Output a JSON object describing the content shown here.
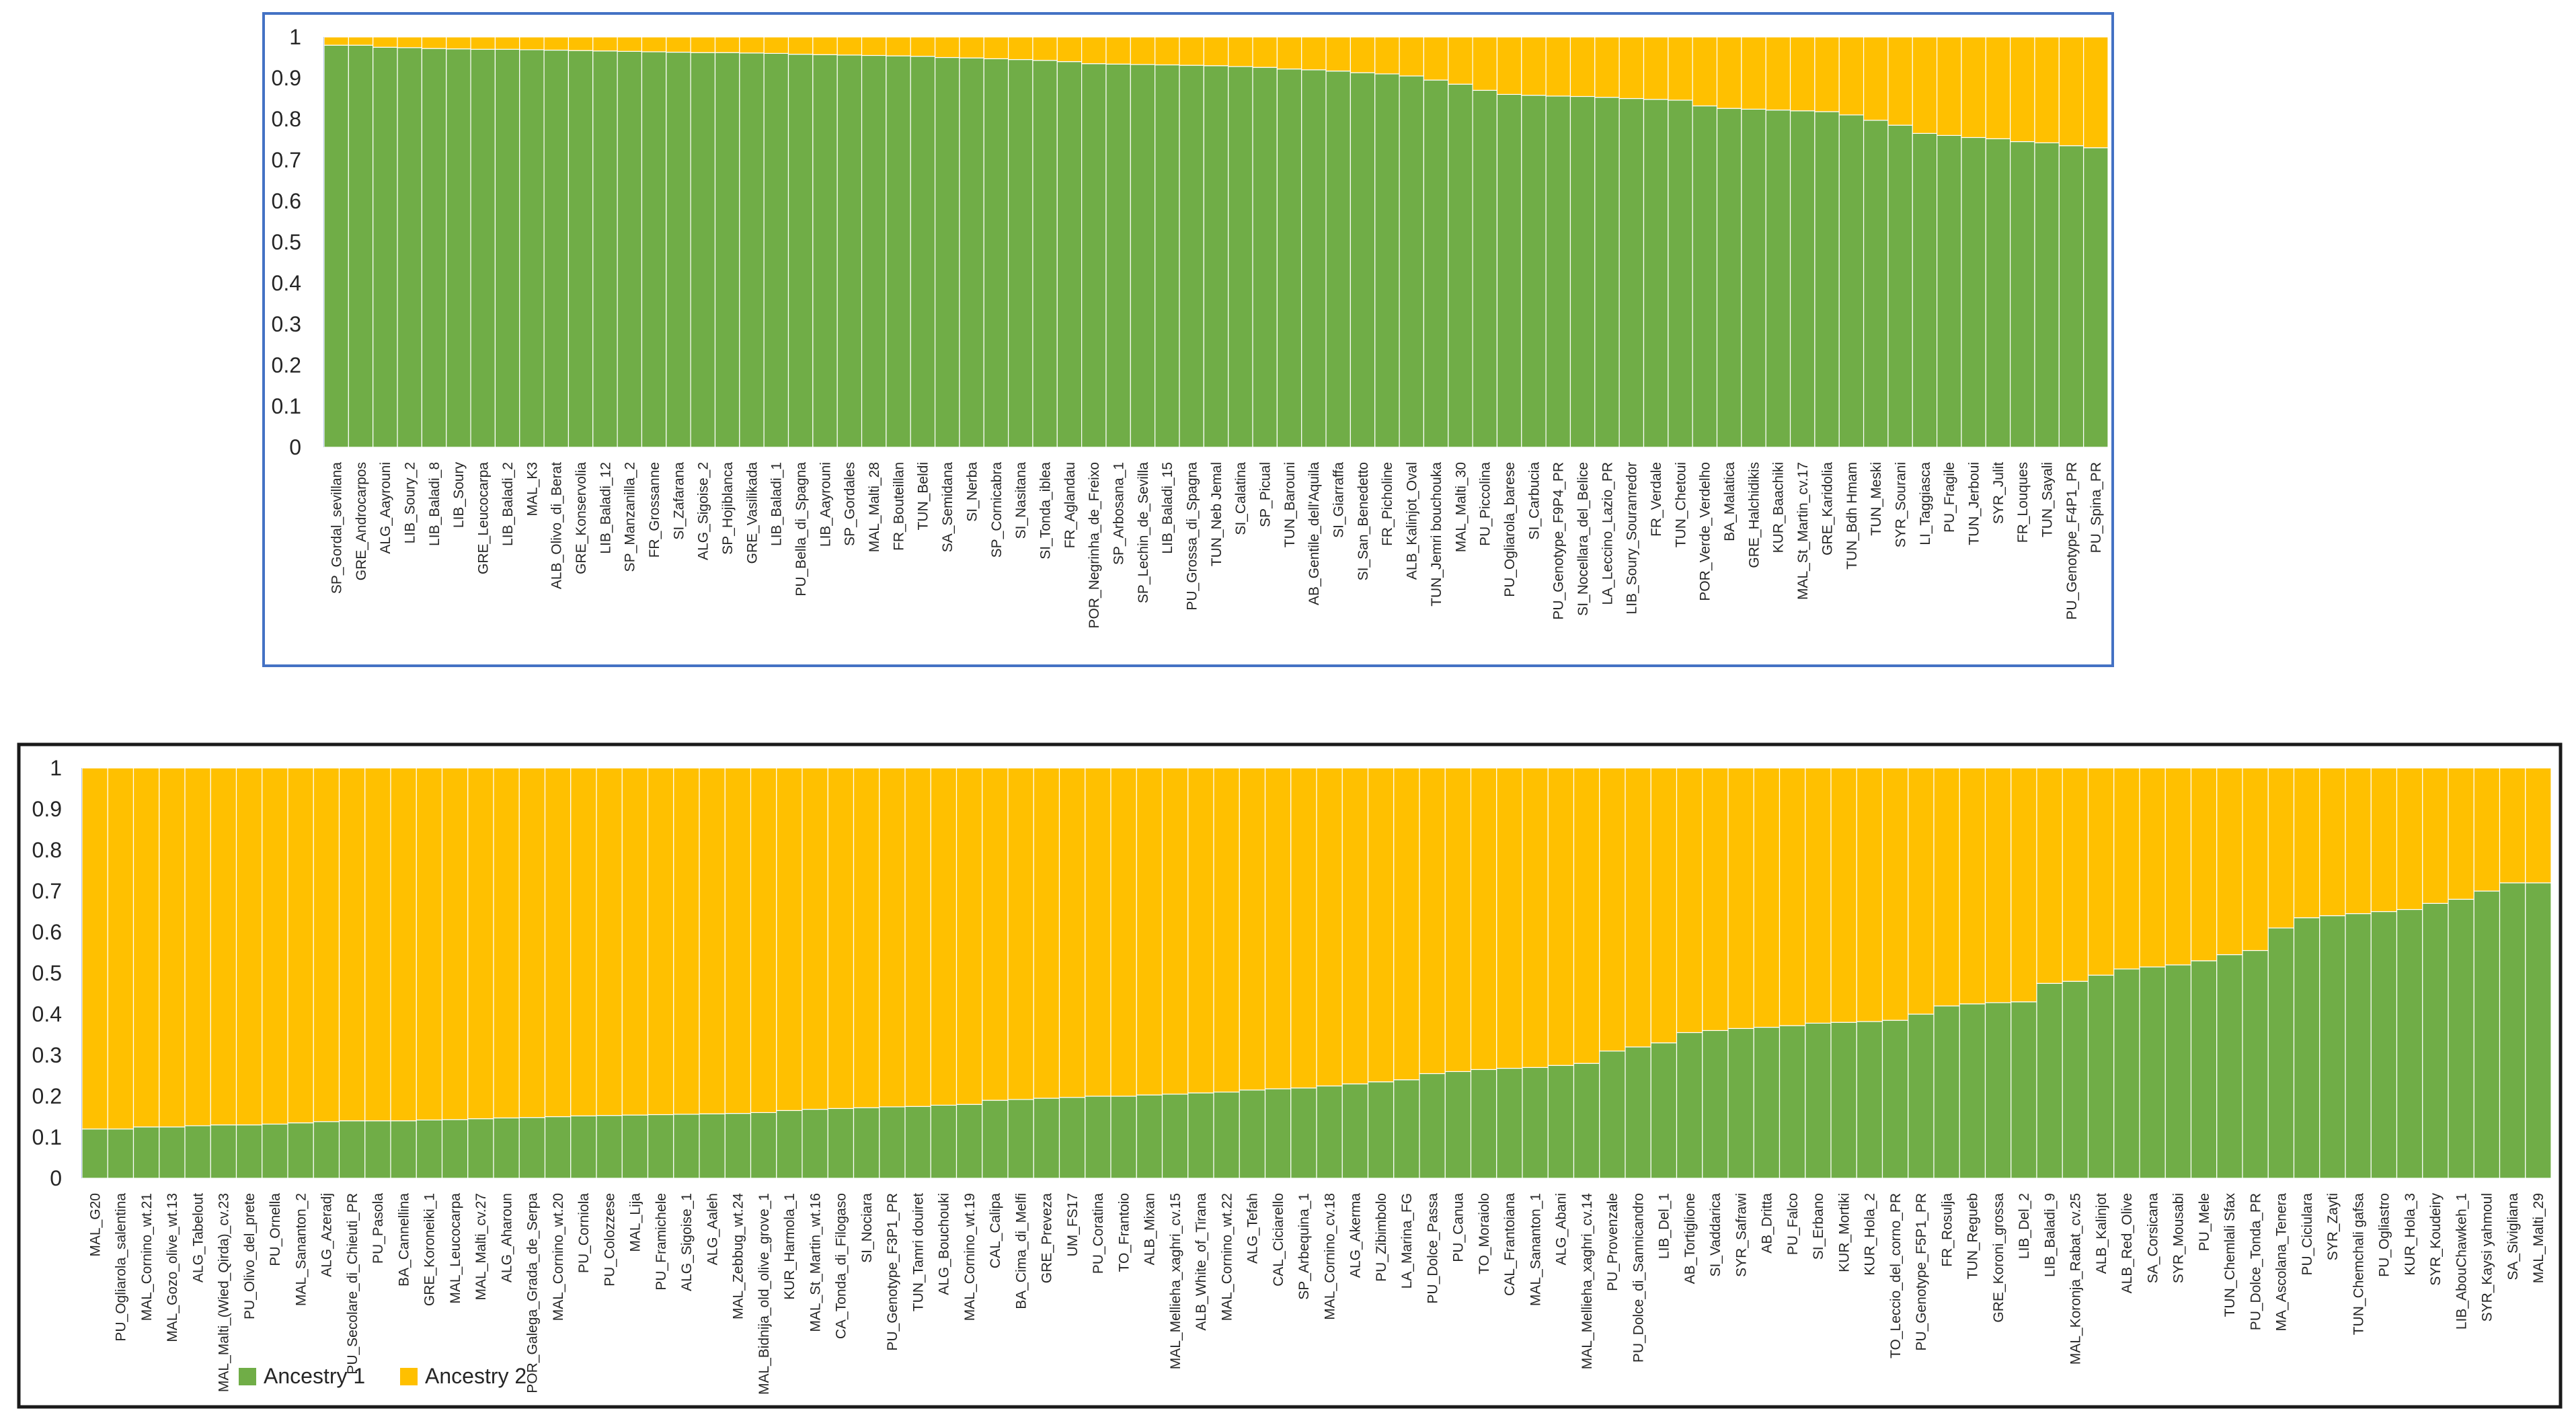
{
  "colors": {
    "ancestry1": "#70AD47",
    "ancestry2": "#FFC000",
    "frame": "#4472C4",
    "frameDark": "#1a1a1a",
    "axisText": "#262626",
    "tickLine": "#D9D9D9"
  },
  "chart_data": [
    {
      "type": "bar",
      "stacked": true,
      "title": "",
      "xlabel": "",
      "ylabel": "",
      "ylim": [
        0,
        1
      ],
      "yticks": [
        "0",
        "0.1",
        "0.2",
        "0.3",
        "0.4",
        "0.5",
        "0.6",
        "0.7",
        "0.8",
        "0.9",
        "1"
      ],
      "categories": [
        "SP_Gordal_sevillana",
        "GRE_Androcarpos",
        "ALG_Aayrouni",
        "LIB_Soury_2",
        "LIB_Baladi_8",
        "LIB_Soury",
        "GRE_Leucocarpa",
        "LIB_Baladi_2",
        "MAL_K3",
        "ALB_Olivo_di_Berat",
        "GRE_Konservolia",
        "LIB_Baladi_12",
        "SP_Manzanilla_2",
        "FR_Grossanne",
        "SI_Zafarana",
        "ALG_Sigoise_2",
        "SP_Hojiblanca",
        "GRE_Vasilikada",
        "LIB_Baladi_1",
        "PU_Bella_di_Spagna",
        "LIB_Aayrouni",
        "SP_Gordales",
        "MAL_Malti_28",
        "FR_Bouteillan",
        "TUN_Beldi",
        "SA_Semidana",
        "SI_Nerba",
        "SP_Cornicabra",
        "SI_Nasitana",
        "SI_Tonda_iblea",
        "FR_Aglandau",
        "POR_Negrinha_de_Freixo",
        "SP_Arbosana_1",
        "SP_Lechin_de_Sevilla",
        "LIB_Baladi_15",
        "PU_Grossa_di_Spagna",
        "TUN_Neb Jemal",
        "SI_Calatina",
        "SP_Picual",
        "TUN_Barouni",
        "AB_Gentile_dell'Aquila",
        "SI_Giarraffa",
        "SI_San_Benedetto",
        "FR_Picholine",
        "ALB_Kalinjot_Oval",
        "TUN_Jemri bouchouka",
        "MAL_Malti_30",
        "PU_Piccolina",
        "PU_Ogliarola_barese",
        "SI_Carbucia",
        "PU_Genotype_F9P4_PR",
        "SI_Nocellara_del_Belice",
        "LA_Leccino_Lazio_PR",
        "LIB_Soury_Souranredor",
        "FR_Verdale",
        "TUN_Chetoui",
        "POR_Verde_Verdelho",
        "BA_Malatica",
        "GRE_Halchidikis",
        "KUR_Baachiki",
        "MAL_St_Martin_cv.17",
        "GRE_Karidolia",
        "TUN_Bdh Hmam",
        "TUN_Meski",
        "SYR_Sourani",
        "LI_Taggiasca",
        "PU_Fragile",
        "TUN_Jerboui",
        "SYR_Julit",
        "FR_Louques",
        "TUN_Sayali",
        "PU_Genotype_F4P1_PR",
        "PU_Spina_PR"
      ],
      "series": [
        {
          "name": "Ancestry 1",
          "values": [
            0.98,
            0.98,
            0.975,
            0.974,
            0.972,
            0.971,
            0.97,
            0.97,
            0.969,
            0.968,
            0.967,
            0.966,
            0.965,
            0.964,
            0.963,
            0.962,
            0.962,
            0.961,
            0.96,
            0.958,
            0.957,
            0.956,
            0.955,
            0.954,
            0.953,
            0.95,
            0.949,
            0.947,
            0.945,
            0.943,
            0.94,
            0.935,
            0.934,
            0.933,
            0.932,
            0.931,
            0.93,
            0.928,
            0.926,
            0.922,
            0.92,
            0.917,
            0.913,
            0.91,
            0.905,
            0.895,
            0.885,
            0.87,
            0.86,
            0.858,
            0.856,
            0.855,
            0.853,
            0.85,
            0.848,
            0.846,
            0.832,
            0.826,
            0.824,
            0.822,
            0.82,
            0.818,
            0.81,
            0.797,
            0.785,
            0.765,
            0.76,
            0.755,
            0.752,
            0.745,
            0.742,
            0.735,
            0.73
          ]
        },
        {
          "name": "Ancestry 2",
          "values": [
            0.02,
            0.02,
            0.025,
            0.026,
            0.028,
            0.029,
            0.03,
            0.03,
            0.031,
            0.032,
            0.033,
            0.034,
            0.035,
            0.036,
            0.037,
            0.038,
            0.038,
            0.039,
            0.04,
            0.042,
            0.043,
            0.044,
            0.045,
            0.046,
            0.047,
            0.05,
            0.051,
            0.053,
            0.055,
            0.057,
            0.06,
            0.065,
            0.066,
            0.067,
            0.068,
            0.069,
            0.07,
            0.072,
            0.074,
            0.078,
            0.08,
            0.083,
            0.087,
            0.09,
            0.095,
            0.105,
            0.115,
            0.13,
            0.14,
            0.142,
            0.144,
            0.145,
            0.147,
            0.15,
            0.152,
            0.154,
            0.168,
            0.174,
            0.176,
            0.178,
            0.18,
            0.182,
            0.19,
            0.203,
            0.215,
            0.235,
            0.24,
            0.245,
            0.248,
            0.255,
            0.258,
            0.265,
            0.27
          ]
        }
      ]
    },
    {
      "type": "bar",
      "stacked": true,
      "title": "",
      "xlabel": "",
      "ylabel": "",
      "ylim": [
        0,
        1
      ],
      "yticks": [
        "0",
        "0.1",
        "0.2",
        "0.3",
        "0.4",
        "0.5",
        "0.6",
        "0.7",
        "0.8",
        "0.9",
        "1"
      ],
      "legend": [
        "Ancestry 1",
        "Ancestry 2"
      ],
      "legend_position": "bottom-left",
      "categories": [
        "MAL_G20",
        "PU_Ogliarola_salentina",
        "MAL_Cornino_wt.21",
        "MAL_Gozo_olive_wt.13",
        "ALG_Tabelout",
        "MAL_Malti_(Wied_Qirda)_cv.23",
        "PU_Olivo_del_prete",
        "PU_Ornella",
        "MAL_Sananton_2",
        "ALG_Azeradj",
        "PU_Secolare_di_Chieuti_PR",
        "PU_Pasola",
        "BA_Cannellina",
        "GRE_Koroneiki_1",
        "MAL_Leucocarpa",
        "MAL_Malti_cv.27",
        "ALG_Aharoun",
        "POR_Galega_Grada_de_Serpa",
        "MAL_Cornino_wt.20",
        "PU_Corniola",
        "PU_Colozzese",
        "MAL_Lija",
        "PU_Framichele",
        "ALG_Sigoise_1",
        "ALG_Aaleh",
        "MAL_Zebbug_wt.24",
        "MAL_Bidnija_old_olive_grove_1",
        "KUR_Harmola_1",
        "MAL_St_Martin_wt.16",
        "CA_Tonda_di_Filogaso",
        "SI_Nociara",
        "PU_Genotype_F3P1_PR",
        "TUN_Tamri douiret",
        "ALG_Bouchouki",
        "MAL_Cornino_wt.19",
        "CAL_Calipa",
        "BA_Cima_di_Melfi",
        "GRE_Preveza",
        "UM_FS17",
        "PU_Coratina",
        "TO_Frantoio",
        "ALB_Mixan",
        "MAL_Mellieha_xaghri_cv.15",
        "ALB_White_of_Tirana",
        "MAL_Cornino_wt.22",
        "ALG_Tefah",
        "CAL_Ciciarello",
        "SP_Arbequina_1",
        "MAL_Cornino_cv.18",
        "ALG_Akerma",
        "PU_Zibimbolo",
        "LA_Marina_FG",
        "PU_Dolce_Passa",
        "PU_Canua",
        "TO_Moraiolo",
        "CAL_Frantoiana",
        "MAL_Sananton_1",
        "ALG_Abani",
        "MAL_Mellieha_xaghri_cv.14",
        "PU_Provenzale",
        "PU_Dolce_di_Sannicandro",
        "LIB_Del_1",
        "AB_Tortiglione",
        "SI_Vaddarica",
        "SYR_Safrawi",
        "AB_Dritta",
        "PU_Falco",
        "SI_Erbano",
        "KUR_Mortiki",
        "KUR_Hola_2",
        "TO_Leccio_del_corno_PR",
        "PU_Genotype_F5P1_PR",
        "FR_Rosulja",
        "TUN_Regueb",
        "GRE_Koroni_grossa",
        "LIB_Del_2",
        "LIB_Baladi_9",
        "MAL_Koronja_Rabat_cv.25",
        "ALB_Kalinjot",
        "ALB_Red_Olive",
        "SA_Corsicana",
        "SYR_Mousabi",
        "PU_Mele",
        "TUN_Chemlali Sfax",
        "PU_Dolce_Tonda_PR",
        "MA_Ascolana_Tenera",
        "PU_Ciciulara",
        "SYR_Zayti",
        "TUN_Chemchali gafsa",
        "PU_Ogliastro",
        "KUR_Hola_3",
        "SYR_Koudeiry",
        "LIB_AbouChawkeh_1",
        "SYR_Kaysi yahmoul",
        "SA_Sivigliana",
        "MAL_Malti_29"
      ],
      "series": [
        {
          "name": "Ancestry 1",
          "values": [
            0.12,
            0.12,
            0.125,
            0.125,
            0.128,
            0.13,
            0.13,
            0.132,
            0.135,
            0.138,
            0.14,
            0.14,
            0.14,
            0.142,
            0.143,
            0.145,
            0.147,
            0.148,
            0.15,
            0.152,
            0.153,
            0.154,
            0.155,
            0.156,
            0.157,
            0.158,
            0.16,
            0.165,
            0.168,
            0.17,
            0.172,
            0.174,
            0.175,
            0.178,
            0.18,
            0.19,
            0.192,
            0.195,
            0.197,
            0.2,
            0.2,
            0.203,
            0.205,
            0.208,
            0.21,
            0.215,
            0.218,
            0.22,
            0.225,
            0.23,
            0.235,
            0.24,
            0.255,
            0.26,
            0.265,
            0.268,
            0.27,
            0.275,
            0.28,
            0.31,
            0.32,
            0.33,
            0.355,
            0.36,
            0.365,
            0.368,
            0.372,
            0.378,
            0.38,
            0.382,
            0.385,
            0.4,
            0.42,
            0.425,
            0.428,
            0.43,
            0.475,
            0.48,
            0.495,
            0.51,
            0.515,
            0.52,
            0.53,
            0.545,
            0.555,
            0.61,
            0.635,
            0.64,
            0.645,
            0.65,
            0.655,
            0.67,
            0.68,
            0.7,
            0.72,
            0.72
          ]
        },
        {
          "name": "Ancestry 2",
          "values": [
            0.88,
            0.88,
            0.875,
            0.875,
            0.872,
            0.87,
            0.87,
            0.868,
            0.865,
            0.862,
            0.86,
            0.86,
            0.86,
            0.858,
            0.857,
            0.855,
            0.853,
            0.852,
            0.85,
            0.848,
            0.847,
            0.846,
            0.845,
            0.844,
            0.843,
            0.842,
            0.84,
            0.835,
            0.832,
            0.83,
            0.828,
            0.826,
            0.825,
            0.822,
            0.82,
            0.81,
            0.808,
            0.805,
            0.803,
            0.8,
            0.8,
            0.797,
            0.795,
            0.792,
            0.79,
            0.785,
            0.782,
            0.78,
            0.775,
            0.77,
            0.765,
            0.76,
            0.745,
            0.74,
            0.735,
            0.732,
            0.73,
            0.725,
            0.72,
            0.69,
            0.68,
            0.67,
            0.645,
            0.64,
            0.635,
            0.632,
            0.628,
            0.622,
            0.62,
            0.618,
            0.615,
            0.6,
            0.58,
            0.575,
            0.572,
            0.57,
            0.525,
            0.52,
            0.505,
            0.49,
            0.485,
            0.48,
            0.47,
            0.455,
            0.445,
            0.39,
            0.365,
            0.36,
            0.355,
            0.35,
            0.345,
            0.33,
            0.32,
            0.3,
            0.28,
            0.28
          ]
        }
      ]
    }
  ]
}
